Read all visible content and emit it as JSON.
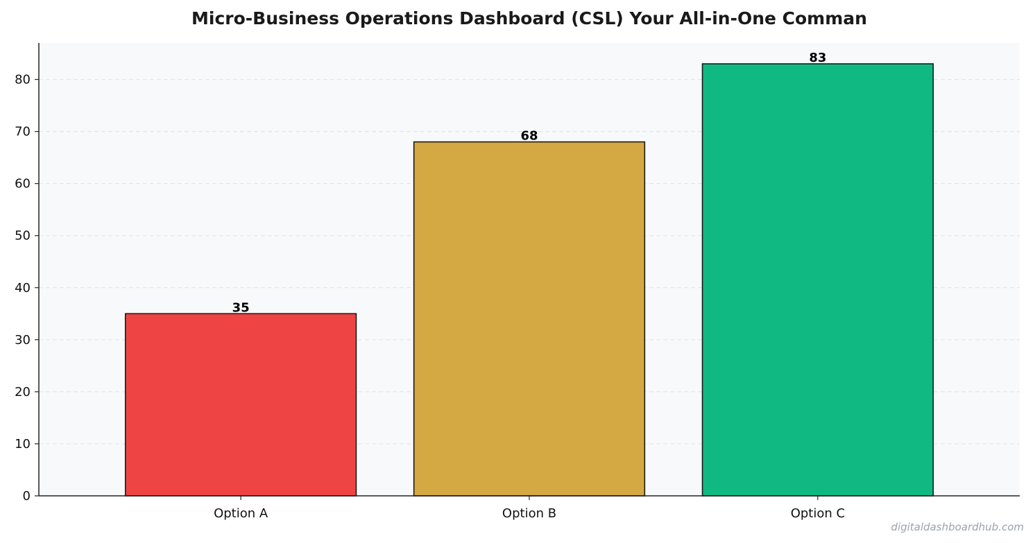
{
  "chart_data": {
    "type": "bar",
    "title": "Micro-Business Operations Dashboard (CSL)  Your All-in-One Comman",
    "categories": [
      "Option A",
      "Option B",
      "Option C"
    ],
    "values": [
      35,
      68,
      83
    ],
    "colors": [
      "#ef4444",
      "#d4a843",
      "#10b981"
    ],
    "xlabel": "",
    "ylabel": "",
    "ylim": [
      0,
      87
    ],
    "yticks": [
      0,
      10,
      20,
      30,
      40,
      50,
      60,
      70,
      80
    ],
    "grid": true,
    "legend": "none"
  },
  "watermark": "digitaldashboardhub.com",
  "style": {
    "plot_bg": "#f8f9fb",
    "grid_color": "#e3e6ea",
    "axis_color": "#222222",
    "bar_edge": "#1a1a1a"
  }
}
